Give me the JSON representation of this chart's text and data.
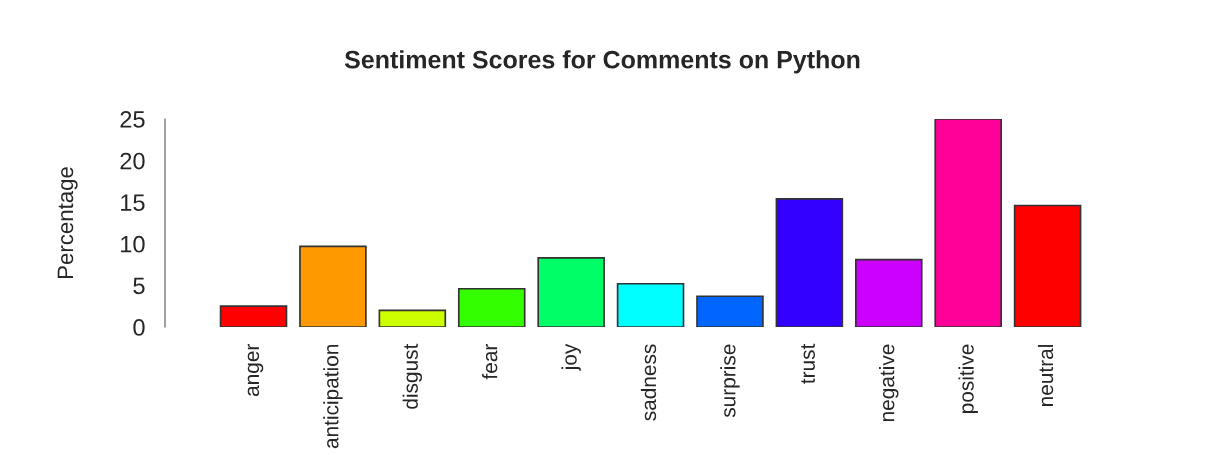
{
  "chart_data": {
    "type": "bar",
    "title": "Sentiment Scores for Comments on Python",
    "ylabel": "Percentage",
    "categories": [
      "anger",
      "anticipation",
      "disgust",
      "fear",
      "joy",
      "sadness",
      "surprise",
      "trust",
      "negative",
      "positive",
      "neutral"
    ],
    "values": [
      2.5,
      9.7,
      2.0,
      4.6,
      8.3,
      5.2,
      3.7,
      15.4,
      8.1,
      25.0,
      14.6
    ],
    "colors": [
      "#ff0000",
      "#ff9900",
      "#ccff00",
      "#33ff00",
      "#00ff66",
      "#00ffff",
      "#0066ff",
      "#3300ff",
      "#cc00ff",
      "#ff0099",
      "#ff0000"
    ],
    "ylim": [
      0,
      25
    ],
    "yticks": [
      0,
      5,
      10,
      15,
      20,
      25
    ],
    "grid": false,
    "legend": false
  }
}
